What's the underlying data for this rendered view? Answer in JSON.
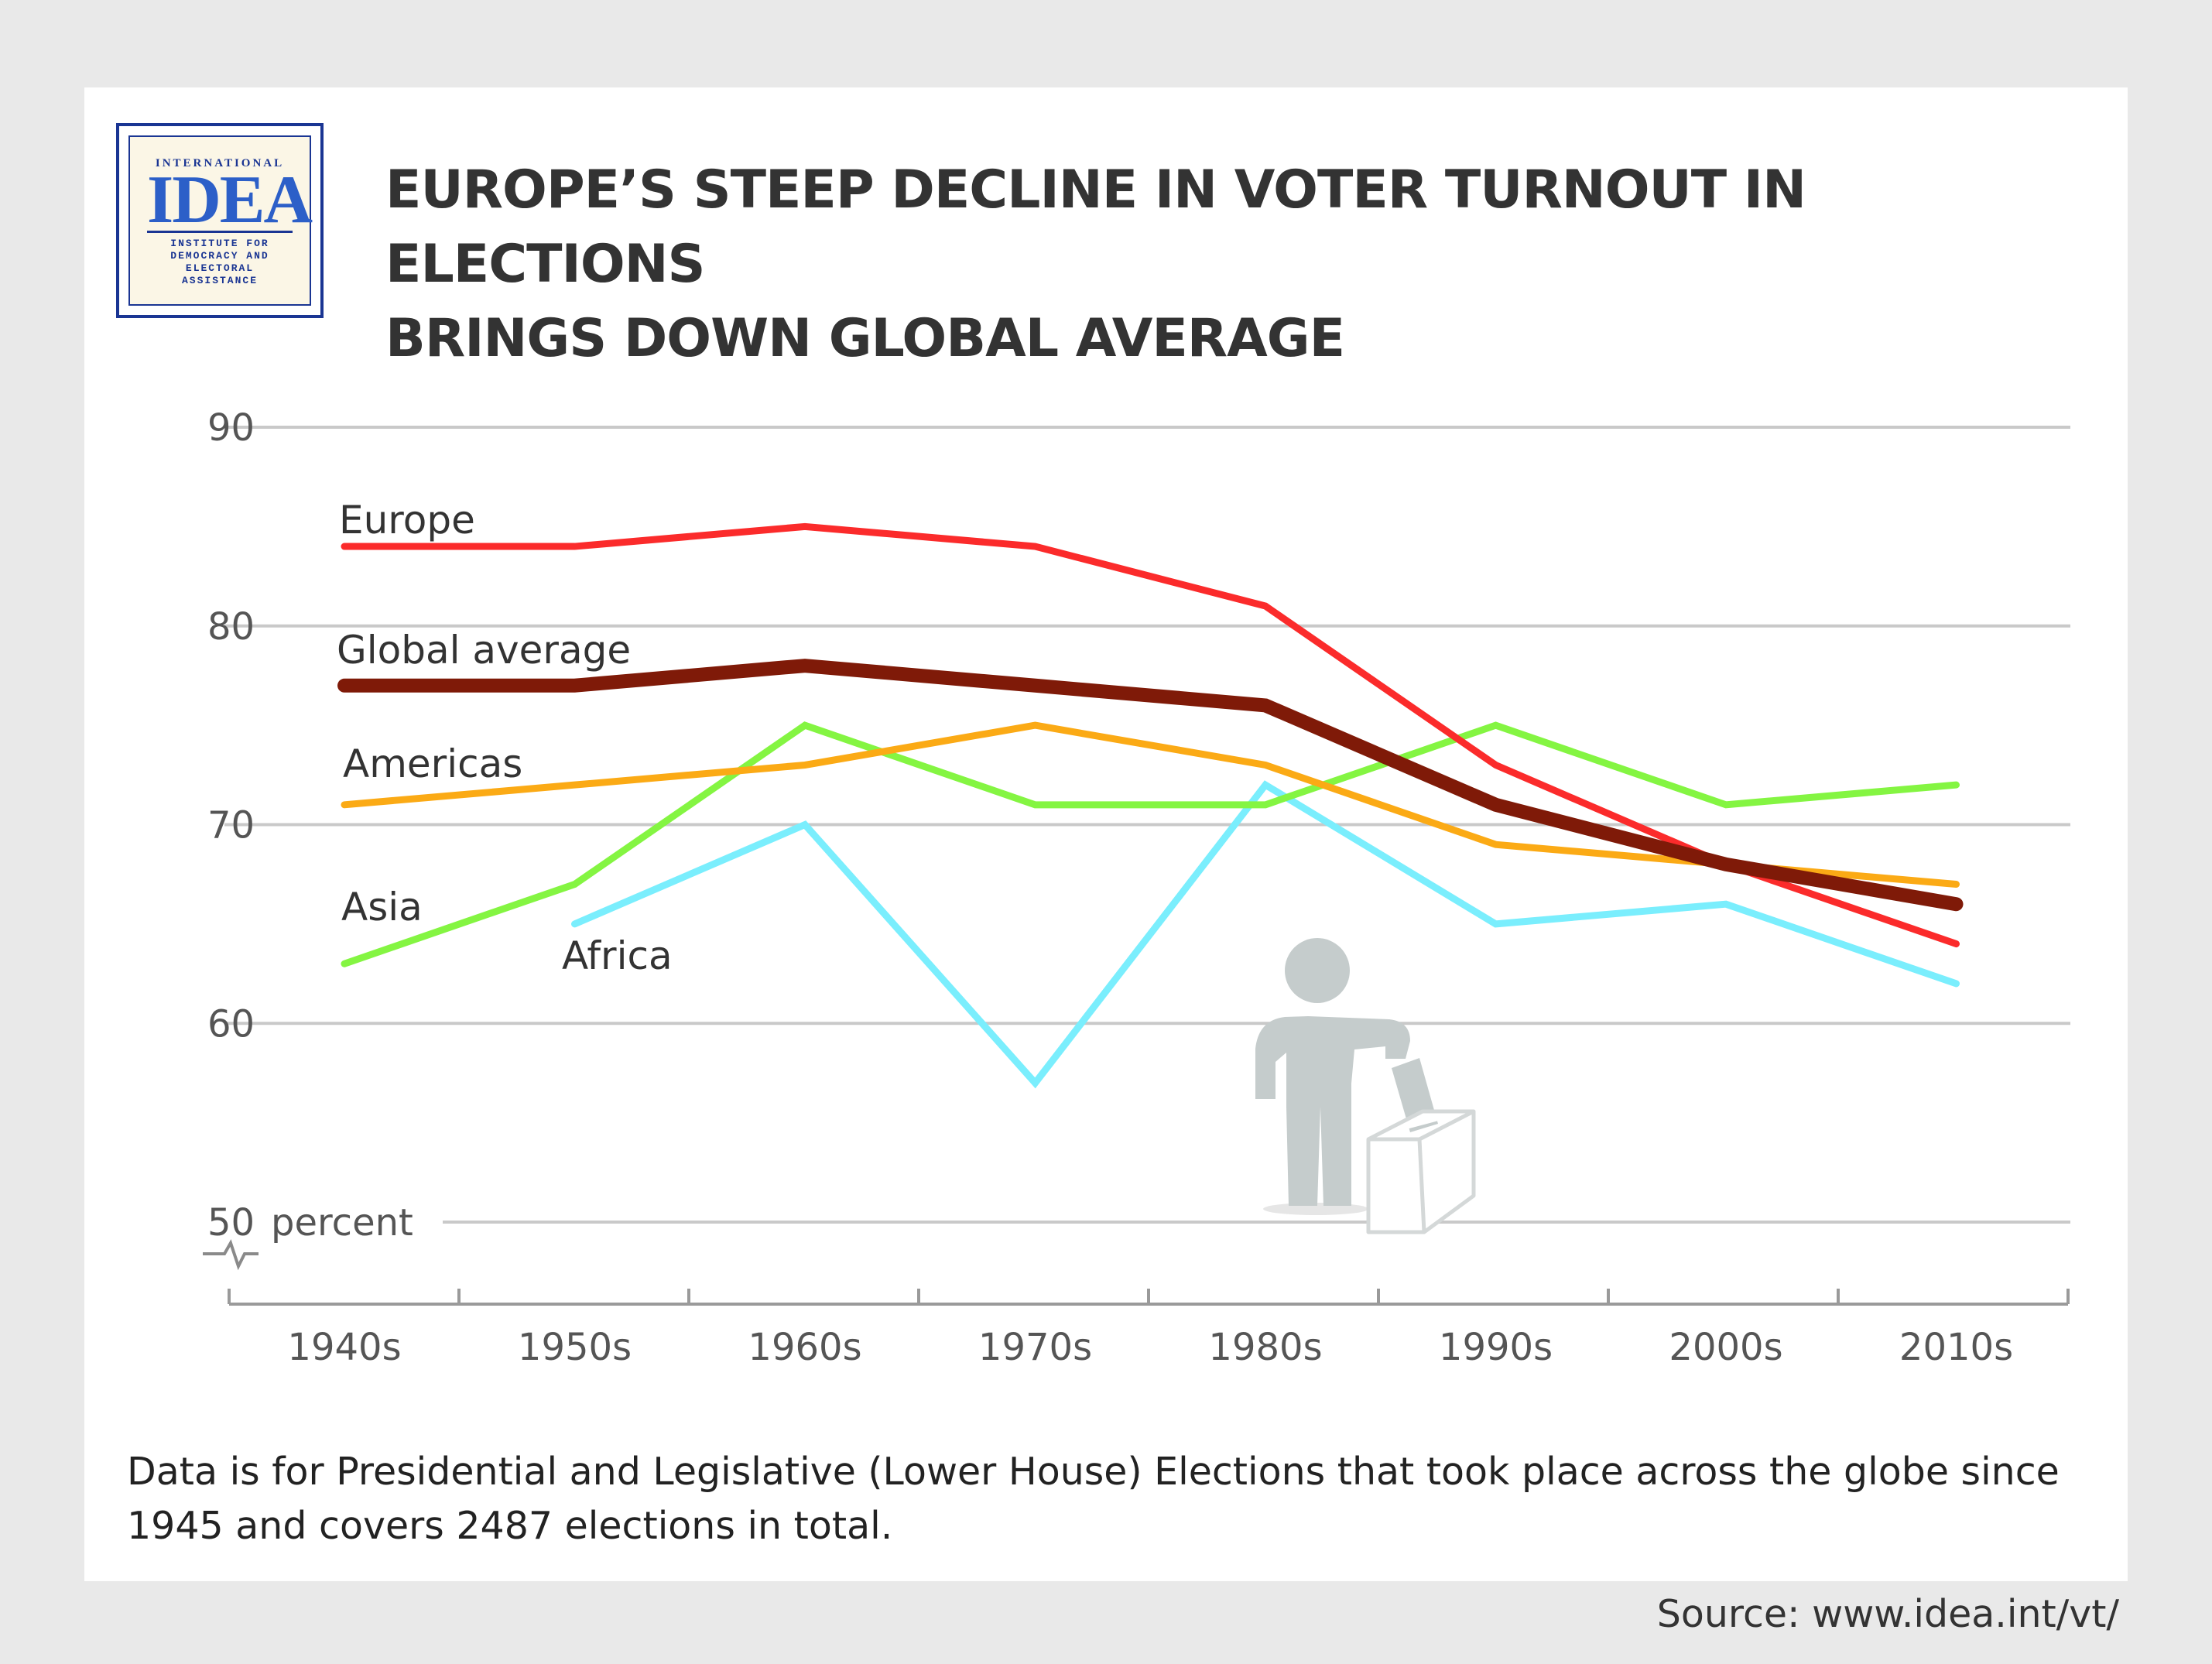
{
  "logo": {
    "top": "INTERNATIONAL",
    "main": "IDEA",
    "sub": "INSTITUTE FOR\nDEMOCRACY AND\nELECTORAL\nASSISTANCE"
  },
  "title_line1": "EUROPE’S STEEP DECLINE IN VOTER TURNOUT IN ELECTIONS",
  "title_line2": "BRINGS DOWN GLOBAL AVERAGE",
  "footnote_line1": "Data is for Presidential and Legislative (Lower House) Elections that took place across the globe since",
  "footnote_line2": "1945 and covers 2487 elections in total.",
  "source": "Source: www.idea.int/vt/",
  "icons": {
    "illustration": "voter-ballot-box-icon",
    "axis_break": "axis-break-icon"
  },
  "chart_data": {
    "type": "line",
    "title": "EUROPE’S STEEP DECLINE IN VOTER TURNOUT IN ELECTIONS BRINGS DOWN GLOBAL AVERAGE",
    "xlabel": "",
    "ylabel": "percent",
    "ylim": [
      50,
      90
    ],
    "yticks": [
      50,
      60,
      70,
      80,
      90
    ],
    "y_unit_label": "percent",
    "grid": true,
    "axis_break": true,
    "categories": [
      "1940s",
      "1950s",
      "1960s",
      "1970s",
      "1980s",
      "1990s",
      "2000s",
      "2010s"
    ],
    "series": [
      {
        "name": "Africa",
        "color": "#7aeefd",
        "values": [
          null,
          65,
          70,
          57,
          72,
          65,
          66,
          62
        ]
      },
      {
        "name": "Asia",
        "color": "#84f542",
        "values": [
          63,
          67,
          75,
          71,
          71,
          75,
          71,
          72
        ]
      },
      {
        "name": "Americas",
        "color": "#fbaa15",
        "values": [
          71,
          72,
          73,
          75,
          73,
          69,
          68,
          67
        ]
      },
      {
        "name": "Europe",
        "color": "#fb2b2b",
        "values": [
          84,
          84,
          85,
          84,
          81,
          73,
          68,
          64
        ]
      },
      {
        "name": "Global average",
        "color": "#7f1a08",
        "values": [
          77,
          77,
          78,
          77,
          76,
          71,
          68,
          66
        ]
      }
    ]
  }
}
